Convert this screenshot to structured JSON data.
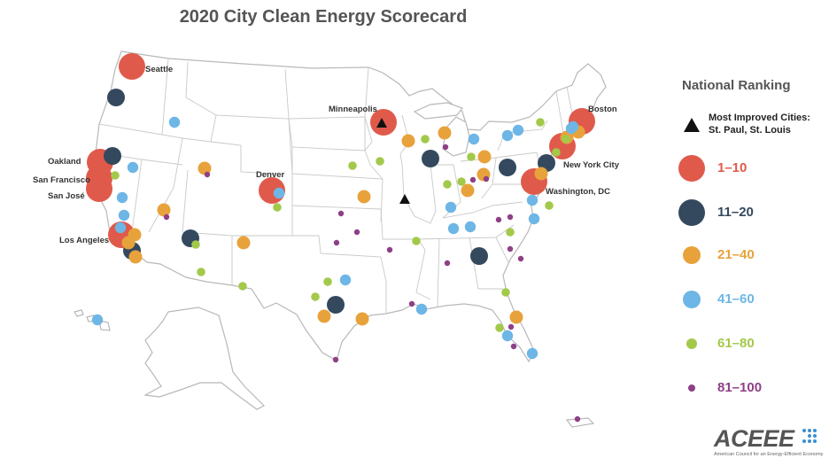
{
  "title": "2020 City Clean Energy Scorecard",
  "legend": {
    "title": "National Ranking",
    "most_improved": {
      "icon": "black-triangle-icon",
      "line1": "Most Improved Cities:",
      "line2": "St. Paul, St. Louis"
    },
    "tiers": [
      {
        "label": "1–10",
        "color": "#e05a4b",
        "size": "large"
      },
      {
        "label": "11–20",
        "color": "#34495e",
        "size": "large"
      },
      {
        "label": "21–40",
        "color": "#e8a23b",
        "size": "medium"
      },
      {
        "label": "41–60",
        "color": "#6db6e6",
        "size": "medium"
      },
      {
        "label": "61–80",
        "color": "#a3c94a",
        "size": "small"
      },
      {
        "label": "81–100",
        "color": "#8e3f86",
        "size": "tiny"
      }
    ]
  },
  "city_labels": [
    "Seattle",
    "Minneapolis",
    "Boston",
    "Oakland",
    "San Francisco",
    "San José",
    "Denver",
    "New York City",
    "Washington, DC",
    "Los Angeles"
  ],
  "logo": {
    "name": "ACEEE",
    "tagline": "American Council for an Energy-Efficient Economy"
  }
}
